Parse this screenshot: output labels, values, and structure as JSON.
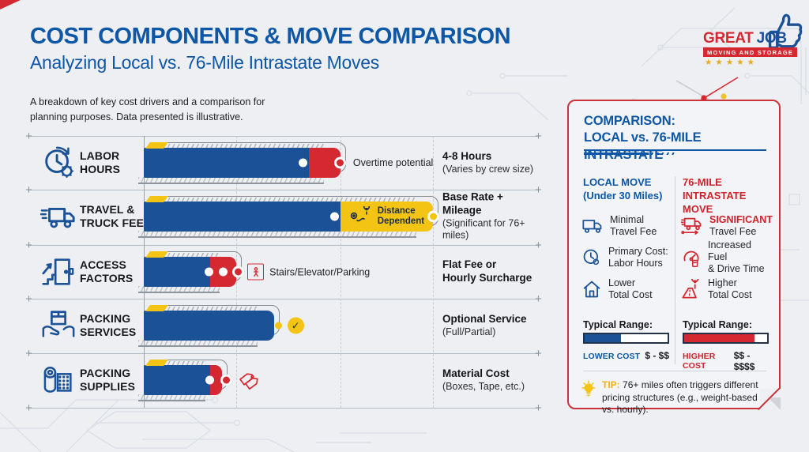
{
  "header": {
    "title": "COST COMPONENTS & MOVE COMPARISON",
    "subtitle": "Analyzing Local vs. 76-Mile Intrastate Moves",
    "description": "A breakdown of key cost drivers and a comparison for planning purposes. Data presented is illustrative."
  },
  "logo": {
    "brand_word1": "GREAT",
    "brand_word2": "JOB",
    "tagline": "MOVING AND STORAGE",
    "stars": "★★★★★"
  },
  "chart_data": {
    "type": "bar",
    "orientation": "horizontal",
    "value_unit": "percent of maximum bar length (illustrative relative cost/scale)",
    "xlim": [
      0,
      100
    ],
    "grid": "dashed vertical gridlines",
    "categories": [
      "LABOR HOURS",
      "TRAVEL & TRUCK FEE",
      "ACCESS FACTORS",
      "PACKING SERVICES",
      "PACKING SUPPLIES"
    ],
    "series": [
      {
        "name": "base component",
        "color": "#1b5196",
        "values": [
          57,
          68,
          23,
          45,
          23
        ]
      },
      {
        "name": "variable component",
        "colors": [
          "#d42931",
          "#f4c414",
          "#d42931",
          null,
          "#d42931"
        ],
        "values": [
          11,
          32,
          9,
          0,
          4
        ]
      }
    ],
    "rows": [
      {
        "category_line1": "LABOR",
        "category_line2": "HOURS",
        "icon": "clock-gear",
        "base_pct": 57,
        "accent_pct": 11,
        "accent_color": "red",
        "annotation": "Overtime potential",
        "desc_bold": "4-8 Hours",
        "desc_note": "(Varies by crew size)"
      },
      {
        "category_line1": "TRAVEL &",
        "category_line2": "TRUCK FEE",
        "icon": "truck",
        "base_pct": 68,
        "accent_pct": 32,
        "accent_color": "yellow",
        "bar_label_line1": "Distance",
        "bar_label_line2": "Dependent",
        "desc_bold": "Base Rate + Mileage",
        "desc_note": "(Significant for 76+ miles)"
      },
      {
        "category_line1": "ACCESS",
        "category_line2": "FACTORS",
        "icon": "door-stairs",
        "base_pct": 23,
        "accent_pct": 9,
        "accent_color": "red",
        "annotation": "Stairs/Elevator/Parking",
        "desc_bold": "Flat Fee or",
        "desc_bold2": "Hourly Surcharge",
        "desc_note": ""
      },
      {
        "category_line1": "PACKING",
        "category_line2": "SERVICES",
        "icon": "hands-box",
        "base_pct": 45,
        "accent_pct": 0,
        "accent_color": "none",
        "desc_bold": "Optional Service",
        "desc_note": "(Full/Partial)"
      },
      {
        "category_line1": "PACKING",
        "category_line2": "SUPPLIES",
        "icon": "packing-roll",
        "base_pct": 23,
        "accent_pct": 4,
        "accent_color": "red",
        "desc_bold": "Material Cost",
        "desc_note": "(Boxes, Tape, etc.)"
      }
    ]
  },
  "panel": {
    "title_line1": "COMPARISON:",
    "title_line2": "LOCAL vs. 76-MILE INTRASTATE",
    "local": {
      "header_line1": "LOCAL MOVE",
      "header_line2": "(Under 30 Miles)",
      "items": [
        {
          "icon": "truck",
          "line1": "Minimal",
          "line2": "Travel Fee"
        },
        {
          "icon": "clock",
          "line1": "Primary Cost:",
          "line2": "Labor Hours"
        },
        {
          "icon": "house",
          "line1": "Lower",
          "line2": "Total Cost"
        }
      ],
      "range_label": "Typical Range:",
      "range_pct": 44,
      "cost_label": "LOWER COST",
      "cost_value": "$ - $$",
      "accent_color": "#1b5196"
    },
    "intrastate": {
      "header_line1": "76-MILE",
      "header_line2": "INTRASTATE MOVE",
      "items": [
        {
          "icon": "fast-truck",
          "line1": "SIGNIFICANT",
          "line2": "Travel Fee",
          "emphasis": true
        },
        {
          "icon": "fuel-gauge",
          "line1": "Increased Fuel",
          "line2": "& Drive Time"
        },
        {
          "icon": "road-pin",
          "line1": "Higher",
          "line2": "Total Cost"
        }
      ],
      "range_label": "Typical Range:",
      "range_pct": 85,
      "cost_label": "HIGHER COST",
      "cost_value": "$$ - $$$$",
      "accent_color": "#d42931"
    },
    "tip_label": "TIP:",
    "tip_text": "76+ miles often triggers different pricing structures (e.g., weight-based vs. hourly)."
  },
  "colors": {
    "page_background": "#edeff2",
    "heading_blue": "#0d57a6",
    "bar_blue": "#1b5196",
    "accent_red": "#d42931",
    "accent_yellow": "#f4c414",
    "star_gold": "#e9a91e"
  }
}
